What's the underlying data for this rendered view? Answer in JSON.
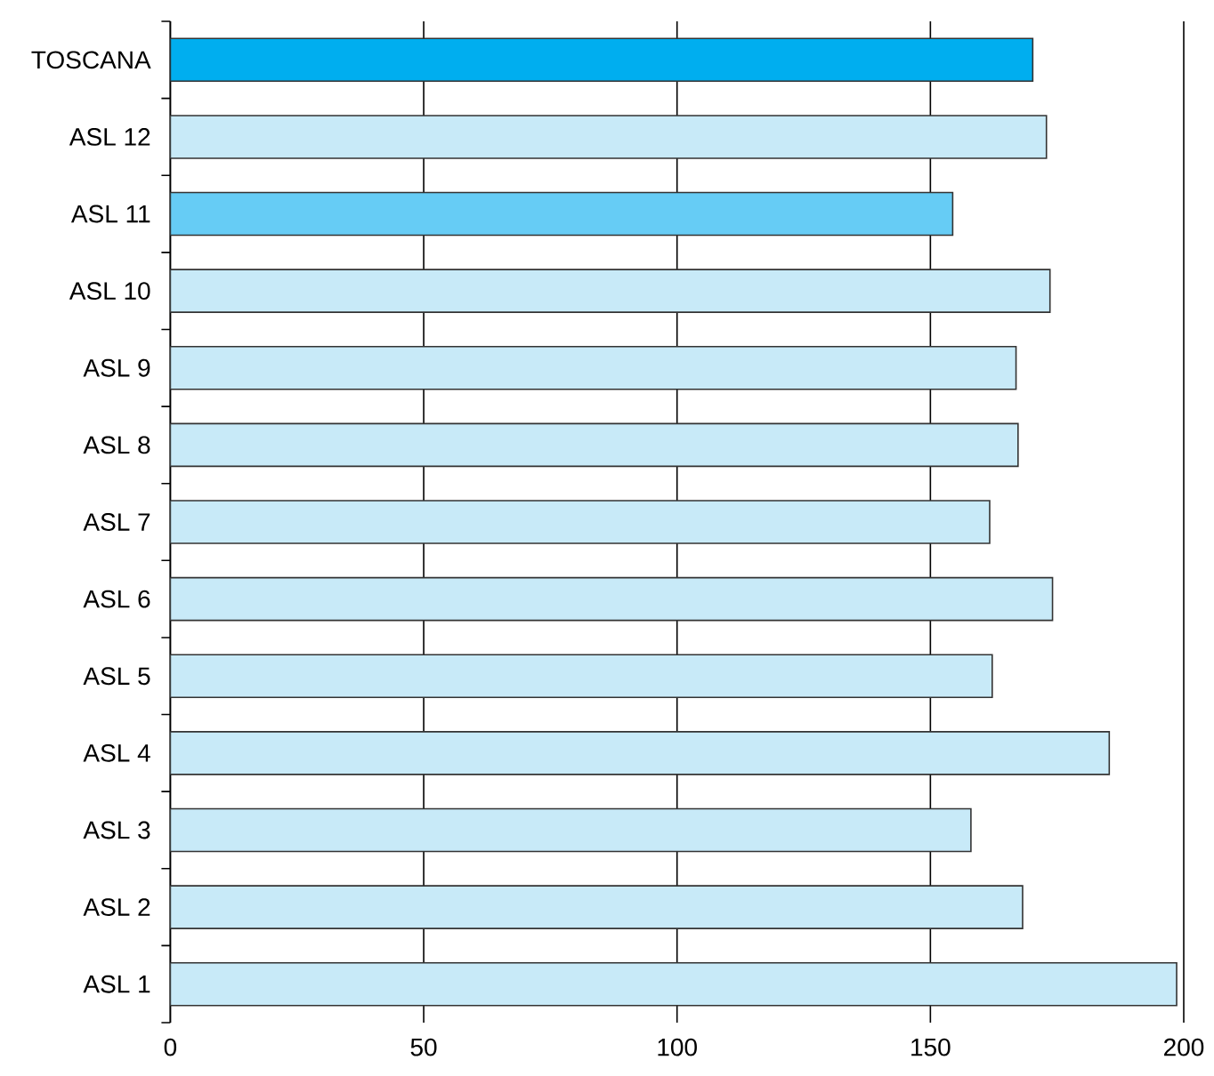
{
  "chart_data": {
    "type": "bar",
    "orientation": "horizontal",
    "categories": [
      "TOSCANA",
      "ASL 12",
      "ASL 11",
      "ASL 10",
      "ASL 9",
      "ASL 8",
      "ASL 7",
      "ASL 6",
      "ASL 5",
      "ASL 4",
      "ASL 3",
      "ASL 2",
      "ASL 1"
    ],
    "values": [
      170.2,
      172.9,
      154.4,
      173.6,
      166.9,
      167.3,
      161.7,
      174.1,
      162.2,
      185.3,
      158.0,
      168.2,
      198.6
    ],
    "colors": [
      "#00aeef",
      "#c8eaf8",
      "#66ccf5",
      "#c8eaf8",
      "#c8eaf8",
      "#c8eaf8",
      "#c8eaf8",
      "#c8eaf8",
      "#c8eaf8",
      "#c8eaf8",
      "#c8eaf8",
      "#c8eaf8",
      "#c8eaf8"
    ],
    "xlim": [
      0,
      200
    ],
    "xticks": [
      0,
      50,
      100,
      150,
      200
    ],
    "grid": "x"
  }
}
